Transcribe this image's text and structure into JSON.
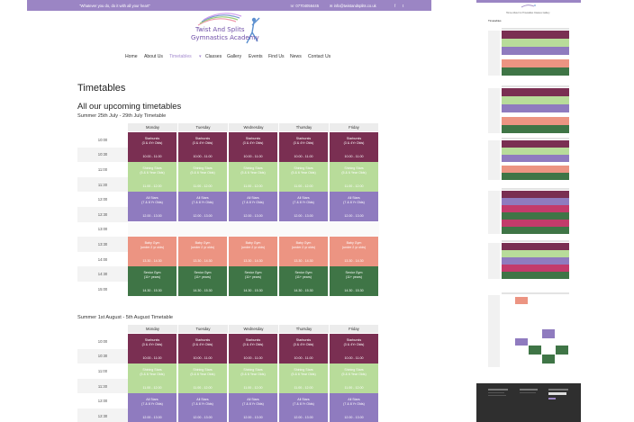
{
  "topbar": {
    "quote": "\"Whatever you do, do it with all your heart\"",
    "phone": "07704056445",
    "email": "info@twistandsplits.co.uk",
    "social_icons": [
      "facebook-icon",
      "twitter-icon"
    ]
  },
  "logo": {
    "line1": "Twist And Splits",
    "line2": "Gymnastics Academy"
  },
  "nav": {
    "items": [
      "Home",
      "About Us",
      "Timetables",
      "Classes",
      "Gallery",
      "Events",
      "Find Us",
      "News",
      "Contact Us"
    ],
    "active": "Timetables"
  },
  "headings": {
    "page_title": "Timetables",
    "section_title": "All our upcoming timetables",
    "timetable1": "Summer 25th July - 29th July Timetable",
    "timetable2": "Summer 1st August - 5th August Timetable"
  },
  "days": [
    "Monday",
    "Tuesday",
    "Wednesday",
    "Thursday",
    "Friday"
  ],
  "times1": [
    "10:00",
    "10:30",
    "11:00",
    "11:30",
    "12:00",
    "12:30",
    "13:00",
    "13:30",
    "14:00",
    "14:30",
    "15:00"
  ],
  "times2": [
    "10:00",
    "10:30",
    "11:00",
    "11:30",
    "12:00",
    "12:30"
  ],
  "sessions": {
    "starbursts": {
      "name1": "Starbursts",
      "name2": "(3 & 4Yr Olds)",
      "time": "10.00 - 11.00"
    },
    "shining": {
      "name1": "Shining Stars",
      "name2": "(5 & 6 Year Olds)",
      "time": "11.00 - 12.00"
    },
    "allstars": {
      "name1": "All Stars",
      "name2": "(7 & 8 Yr Olds)",
      "time": "12.00 - 13.00"
    },
    "baby": {
      "name1": "Baby Gym",
      "name2": "(under 2 yr olds)",
      "time": "13.30 - 14.30"
    },
    "senior": {
      "name1": "Senior Gym",
      "name2": "(11+ years)",
      "time": "14.30 - 15.30"
    }
  },
  "colors": {
    "topbar": "#9b85c4",
    "starbursts": "#7a2f52",
    "shining_stars": "#b8dc9a",
    "all_stars": "#8f7bbf",
    "baby_gym": "#ec9482",
    "senior_gym": "#3f7546",
    "footer": "#2f2f2f"
  },
  "thumbnail": {
    "title": "Timetables",
    "nav": "Home  About Us  Timetables  Classes  Gallery"
  }
}
